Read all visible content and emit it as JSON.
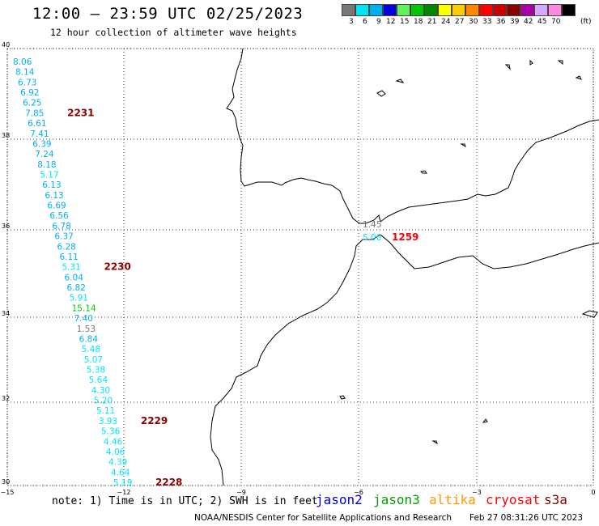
{
  "title": "12:00 – 23:59 UTC 02/25/2023",
  "subtitle": "12 hour collection of altimeter wave heights",
  "legend": {
    "unit_label": "(ft)",
    "bins": [
      {
        "label": "3",
        "color": "#787878"
      },
      {
        "label": "6",
        "color": "#00e5f5"
      },
      {
        "label": "9",
        "color": "#00b0f0"
      },
      {
        "label": "12",
        "color": "#0000e0"
      },
      {
        "label": "15",
        "color": "#60f060"
      },
      {
        "label": "18",
        "color": "#00c800"
      },
      {
        "label": "21",
        "color": "#008800"
      },
      {
        "label": "24",
        "color": "#ffff00"
      },
      {
        "label": "27",
        "color": "#ffcc00"
      },
      {
        "label": "30",
        "color": "#ff8800"
      },
      {
        "label": "33",
        "color": "#ff0000"
      },
      {
        "label": "36",
        "color": "#cc0000"
      },
      {
        "label": "39",
        "color": "#880000"
      },
      {
        "label": "42",
        "color": "#aa00aa"
      },
      {
        "label": "45",
        "color": "#d8a8ff"
      },
      {
        "label": "70",
        "color": "#ff88e0"
      },
      {
        "label": "",
        "color": "#000000"
      }
    ]
  },
  "axes": {
    "lat_labels": [
      "40",
      "38",
      "36",
      "34",
      "32",
      "30"
    ],
    "lon_labels": [
      "−15",
      "−12",
      "−9",
      "−6",
      "−3",
      "0"
    ],
    "lat_range": [
      30,
      40
    ],
    "lon_range": [
      -15,
      0
    ]
  },
  "track_pass": {
    "values": [
      "8.06",
      "8.14",
      "6.73",
      "6.92",
      "6.25",
      "7.85",
      "6.61",
      "7.41",
      "6.39",
      "7.24",
      "8.18",
      "5.17",
      "6.13",
      "6.13",
      "6.69",
      "6.56",
      "6.78",
      "6.37",
      "6.28",
      "6.11",
      "5.31",
      "6.04",
      "6.82",
      "5.91",
      "15.14",
      "7.40",
      "1.53",
      "6.84",
      "5.48",
      "5.07",
      "5.38",
      "5.64",
      "4.30",
      "5.20",
      "5.11",
      "3.93",
      "5.36",
      "4.46",
      "4.06",
      "4.39",
      "4.64",
      "5.19"
    ],
    "time_labels": [
      {
        "text": "2231",
        "color": "#880000"
      },
      {
        "text": "2230",
        "color": "#880000"
      },
      {
        "text": "2229",
        "color": "#880000"
      },
      {
        "text": "2228",
        "color": "#880000"
      }
    ]
  },
  "strait_pass": {
    "values": [
      "1.45",
      "5.00"
    ],
    "time_label": {
      "text": "1259",
      "color": "#ff0000"
    }
  },
  "note": "note: 1) Time is in UTC; 2) SWH is in feet",
  "satellites": [
    {
      "name": "jason2",
      "color": "#0000e0"
    },
    {
      "name": "jason3",
      "color": "#00a000"
    },
    {
      "name": "altika",
      "color": "#ff9900"
    },
    {
      "name": "cryosat",
      "color": "#ff0000"
    },
    {
      "name": "s3a",
      "color": "#880000"
    }
  ],
  "footer_left": "NOAA/NESDIS Center for Satellite Applications and Research",
  "footer_right": "Feb 27 08:31:26 UTC 2023"
}
